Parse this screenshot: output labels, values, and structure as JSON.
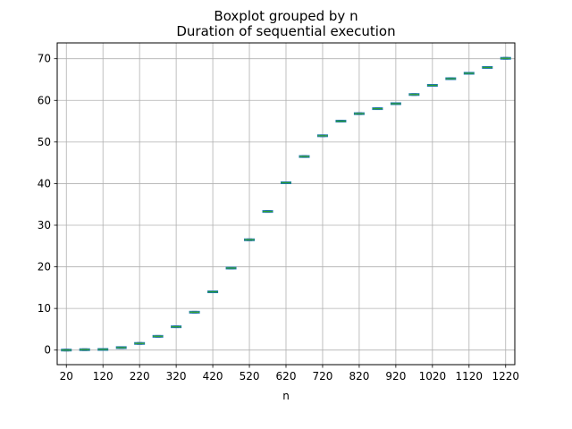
{
  "chart_data": {
    "type": "box",
    "suptitle": "Boxplot grouped by n",
    "title": "Duration of sequential execution",
    "xlabel": "n",
    "ylabel": "",
    "x_tick_labels": [
      "20",
      "120",
      "220",
      "320",
      "420",
      "520",
      "620",
      "720",
      "820",
      "920",
      "1020",
      "1120",
      "1220"
    ],
    "y_ticks": [
      0,
      10,
      20,
      30,
      40,
      50,
      60,
      70
    ],
    "ylim": [
      -3.5,
      73.8
    ],
    "grid": true,
    "categories": [
      20,
      70,
      120,
      170,
      220,
      270,
      320,
      370,
      420,
      470,
      520,
      570,
      620,
      670,
      720,
      770,
      820,
      870,
      920,
      970,
      1020,
      1070,
      1120,
      1170,
      1220
    ],
    "values": [
      0.0,
      0.1,
      0.15,
      0.6,
      1.6,
      3.3,
      5.6,
      9.1,
      14.0,
      19.7,
      26.5,
      33.3,
      40.2,
      46.5,
      51.5,
      55.0,
      56.8,
      58.0,
      59.2,
      61.4,
      63.6,
      65.2,
      66.5,
      67.9,
      70.1
    ],
    "colors": {
      "box": "#1f77b4",
      "median": "#2ca02c",
      "whisker": "#000000",
      "grid": "#b0b0b0",
      "axis": "#000000"
    }
  }
}
